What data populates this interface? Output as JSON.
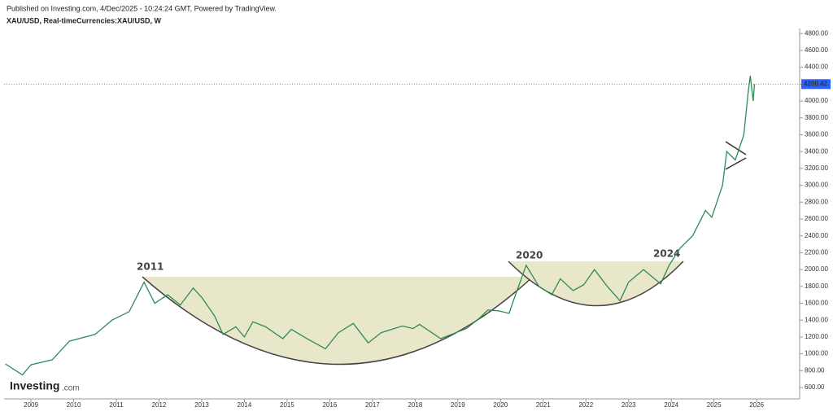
{
  "chart_data": {
    "type": "line",
    "published": "Published on Investing.com, 4/Dec/2025 - 10:24:24 GMT, Powered by TradingView.",
    "title": "XAU/USD, Real-timeCurrencies:XAU/USD, W",
    "logo": {
      "name": "Investing",
      "suffix": ".com"
    },
    "x": [
      2008.4,
      2008.8,
      2009.0,
      2009.5,
      2009.9,
      2010.5,
      2010.9,
      2011.3,
      2011.65,
      2011.9,
      2012.2,
      2012.5,
      2012.8,
      2013.0,
      2013.3,
      2013.5,
      2013.8,
      2014.0,
      2014.2,
      2014.5,
      2014.9,
      2015.1,
      2015.5,
      2015.9,
      2016.2,
      2016.55,
      2016.9,
      2017.2,
      2017.7,
      2017.95,
      2018.1,
      2018.6,
      2018.9,
      2019.2,
      2019.5,
      2019.7,
      2019.95,
      2020.2,
      2020.35,
      2020.6,
      2020.9,
      2021.2,
      2021.4,
      2021.7,
      2021.95,
      2022.2,
      2022.5,
      2022.8,
      2023.0,
      2023.35,
      2023.75,
      2023.95,
      2024.2,
      2024.5,
      2024.8,
      2024.95,
      2025.2,
      2025.3,
      2025.5,
      2025.7,
      2025.8,
      2025.85,
      2025.92,
      2025.95
    ],
    "series": [
      {
        "name": "XAU/USD",
        "color": "#2e8b57",
        "values": [
          880,
          750,
          870,
          930,
          1150,
          1230,
          1400,
          1500,
          1850,
          1600,
          1700,
          1580,
          1780,
          1670,
          1450,
          1230,
          1320,
          1200,
          1380,
          1320,
          1180,
          1290,
          1170,
          1060,
          1250,
          1360,
          1130,
          1250,
          1330,
          1300,
          1350,
          1180,
          1240,
          1300,
          1420,
          1520,
          1510,
          1480,
          1700,
          2050,
          1800,
          1700,
          1890,
          1750,
          1820,
          2000,
          1800,
          1630,
          1850,
          2000,
          1830,
          2050,
          2250,
          2400,
          2700,
          2620,
          3000,
          3400,
          3300,
          3600,
          4100,
          4300,
          4000,
          4200
        ]
      }
    ],
    "last_price": 4200.42,
    "annotations": [
      "2011",
      "2020",
      "2024"
    ],
    "xlim": [
      2008.37,
      2026.95
    ],
    "xticks": [
      2009,
      2010,
      2011,
      2012,
      2013,
      2014,
      2015,
      2016,
      2017,
      2018,
      2019,
      2020,
      2021,
      2022,
      2023,
      2024,
      2025,
      2026
    ],
    "ylim": [
      465,
      4860
    ],
    "yticks": [
      {
        "value": 600,
        "label": "600.00"
      },
      {
        "value": 800,
        "label": "800.00"
      },
      {
        "value": 1000,
        "label": "1000.00"
      },
      {
        "value": 1200,
        "label": "1200.00"
      },
      {
        "value": 1400,
        "label": "1400.00"
      },
      {
        "value": 1600,
        "label": "1600.00"
      },
      {
        "value": 1800,
        "label": "1800.00"
      },
      {
        "value": 2000,
        "label": "2000.00"
      },
      {
        "value": 2200,
        "label": "2200.00"
      },
      {
        "value": 2400,
        "label": "2400.00"
      },
      {
        "value": 2600,
        "label": "2600.00"
      },
      {
        "value": 2800,
        "label": "2800.00"
      },
      {
        "value": 3000,
        "label": "3000.00"
      },
      {
        "value": 3200,
        "label": "3200.00"
      },
      {
        "value": 3400,
        "label": "3400.00"
      },
      {
        "value": 3600,
        "label": "3600.00"
      },
      {
        "value": 3800,
        "label": "3800.00"
      },
      {
        "value": 4000,
        "label": "4000.00"
      },
      {
        "value": 4200,
        "label": "4200.00"
      },
      {
        "value": 4400,
        "label": "4400.00"
      },
      {
        "value": 4600,
        "label": "4600.00"
      },
      {
        "value": 4800,
        "label": "4800.00"
      }
    ],
    "grid": false
  }
}
